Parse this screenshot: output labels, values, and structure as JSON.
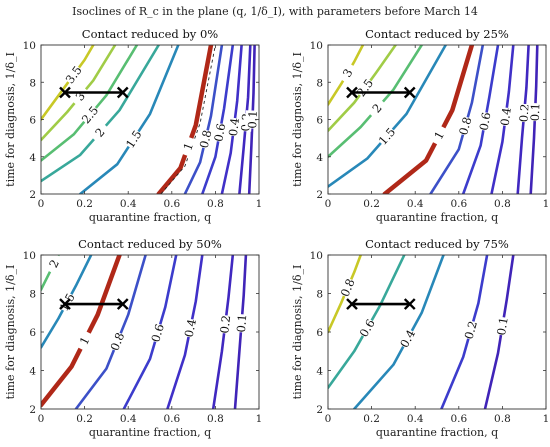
{
  "figure_title": "Isoclines of R_c in the plane (q, 1/δ_I), with parameters before March 14",
  "chart_data": [
    {
      "type": "line",
      "title": "Contact reduced by 0%",
      "xlabel": "quarantine fraction, q",
      "ylabel": "time for diagnosis, 1/δ_I",
      "xlim": [
        0,
        1
      ],
      "ylim": [
        2,
        10
      ],
      "xticks": [
        "0",
        "0.2",
        "0.4",
        "0.6",
        "0.8",
        "1"
      ],
      "yticks": [
        "2",
        "4",
        "6",
        "8",
        "10"
      ],
      "grid": false,
      "contours": [
        {
          "level": 3.5,
          "label": "3.5",
          "color": "#c8c826",
          "points": [
            [
              0.0,
              6.0
            ],
            [
              0.1,
              7.6
            ],
            [
              0.2,
              9.2
            ],
            [
              0.24,
              10.0
            ]
          ]
        },
        {
          "level": 3,
          "label": "3",
          "color": "#a0cc46",
          "points": [
            [
              0.0,
              4.9
            ],
            [
              0.12,
              6.4
            ],
            [
              0.24,
              8.1
            ],
            [
              0.34,
              10.0
            ]
          ]
        },
        {
          "level": 2.5,
          "label": "2.5",
          "color": "#58be72",
          "points": [
            [
              0.0,
              3.8
            ],
            [
              0.15,
              5.2
            ],
            [
              0.3,
              7.3
            ],
            [
              0.44,
              10.0
            ]
          ]
        },
        {
          "level": 2,
          "label": "2",
          "color": "#38a89a",
          "points": [
            [
              0.0,
              2.7
            ],
            [
              0.18,
              4.1
            ],
            [
              0.36,
              6.5
            ],
            [
              0.54,
              10.0
            ]
          ]
        },
        {
          "level": 1.5,
          "label": "1.5",
          "color": "#2888b8",
          "points": [
            [
              0.18,
              2.0
            ],
            [
              0.35,
              3.6
            ],
            [
              0.5,
              6.3
            ],
            [
              0.63,
              10.0
            ]
          ]
        },
        {
          "level": 1,
          "label": "1",
          "color": "#b02818",
          "thick": true,
          "points": [
            [
              0.54,
              2.0
            ],
            [
              0.64,
              3.4
            ],
            [
              0.71,
              5.7
            ],
            [
              0.78,
              10.0
            ]
          ]
        },
        {
          "level": 0.8,
          "label": "0.8",
          "color": "#3c50c8",
          "points": [
            [
              0.66,
              2.0
            ],
            [
              0.73,
              3.7
            ],
            [
              0.78,
              6.2
            ],
            [
              0.83,
              10.0
            ]
          ]
        },
        {
          "level": 0.6,
          "label": "0.6",
          "color": "#3c3ccc",
          "points": [
            [
              0.74,
              2.0
            ],
            [
              0.8,
              4.0
            ],
            [
              0.84,
              6.6
            ],
            [
              0.88,
              10.0
            ]
          ]
        },
        {
          "level": 0.4,
          "label": "0.4",
          "color": "#4030c8",
          "points": [
            [
              0.83,
              2.0
            ],
            [
              0.87,
              4.2
            ],
            [
              0.9,
              7.0
            ],
            [
              0.92,
              10.0
            ]
          ]
        },
        {
          "level": 0.2,
          "label": "0.2",
          "color": "#4028c0",
          "points": [
            [
              0.91,
              2.0
            ],
            [
              0.93,
              4.5
            ],
            [
              0.95,
              7.2
            ],
            [
              0.96,
              10.0
            ]
          ]
        },
        {
          "level": 0.1,
          "label": "0.1",
          "color": "#4024b8",
          "points": [
            [
              0.955,
              2.0
            ],
            [
              0.965,
              4.6
            ],
            [
              0.975,
              7.4
            ],
            [
              0.98,
              10.0
            ]
          ]
        }
      ],
      "dashed": [
        [
          0.55,
          2.0
        ],
        [
          0.66,
          3.5
        ],
        [
          0.73,
          5.8
        ],
        [
          0.8,
          10.0
        ]
      ],
      "marker_line": {
        "x": [
          0.11,
          0.375
        ],
        "y": 7.45
      }
    },
    {
      "type": "line",
      "title": "Contact reduced by 25%",
      "xlabel": "quarantine fraction, q",
      "ylabel": "time for diagnosis, 1/δ_I",
      "xlim": [
        0,
        1
      ],
      "ylim": [
        2,
        10
      ],
      "xticks": [
        "0",
        "0.2",
        "0.4",
        "0.6",
        "0.8",
        "1"
      ],
      "yticks": [
        "2",
        "4",
        "6",
        "8",
        "10"
      ],
      "grid": false,
      "contours": [
        {
          "level": 3,
          "label": "3",
          "color": "#c8c826",
          "points": [
            [
              0.0,
              6.8
            ],
            [
              0.06,
              7.9
            ],
            [
              0.12,
              9.1
            ],
            [
              0.16,
              10.0
            ]
          ]
        },
        {
          "level": 2.5,
          "label": "2.5",
          "color": "#a0cc46",
          "points": [
            [
              0.0,
              5.4
            ],
            [
              0.12,
              6.9
            ],
            [
              0.22,
              8.5
            ],
            [
              0.31,
              10.0
            ]
          ]
        },
        {
          "level": 2,
          "label": "2",
          "color": "#58be72",
          "points": [
            [
              0.0,
              4.0
            ],
            [
              0.15,
              5.6
            ],
            [
              0.3,
              7.6
            ],
            [
              0.43,
              10.0
            ]
          ]
        },
        {
          "level": 1.5,
          "label": "1.5",
          "color": "#2888b8",
          "points": [
            [
              0.0,
              2.4
            ],
            [
              0.18,
              3.9
            ],
            [
              0.36,
              6.3
            ],
            [
              0.54,
              10.0
            ]
          ]
        },
        {
          "level": 1,
          "label": "1",
          "color": "#b02818",
          "thick": true,
          "points": [
            [
              0.26,
              2.0
            ],
            [
              0.45,
              3.8
            ],
            [
              0.57,
              6.5
            ],
            [
              0.66,
              10.0
            ]
          ]
        },
        {
          "level": 0.8,
          "label": "0.8",
          "color": "#3c50c8",
          "points": [
            [
              0.47,
              2.0
            ],
            [
              0.6,
              4.4
            ],
            [
              0.66,
              6.9
            ],
            [
              0.71,
              10.0
            ]
          ]
        },
        {
          "level": 0.6,
          "label": "0.6",
          "color": "#3c3ccc",
          "points": [
            [
              0.62,
              2.0
            ],
            [
              0.7,
              4.6
            ],
            [
              0.74,
              7.2
            ],
            [
              0.78,
              10.0
            ]
          ]
        },
        {
          "level": 0.4,
          "label": "0.4",
          "color": "#4030c8",
          "points": [
            [
              0.75,
              2.0
            ],
            [
              0.8,
              4.8
            ],
            [
              0.83,
              7.5
            ],
            [
              0.85,
              10.0
            ]
          ]
        },
        {
          "level": 0.2,
          "label": "0.2",
          "color": "#4028c0",
          "points": [
            [
              0.87,
              2.0
            ],
            [
              0.89,
              5.0
            ],
            [
              0.91,
              7.7
            ],
            [
              0.92,
              10.0
            ]
          ]
        },
        {
          "level": 0.1,
          "label": "0.1",
          "color": "#4024b8",
          "points": [
            [
              0.93,
              2.0
            ],
            [
              0.945,
              5.0
            ],
            [
              0.955,
              7.8
            ],
            [
              0.96,
              10.0
            ]
          ]
        }
      ],
      "marker_line": {
        "x": [
          0.11,
          0.375
        ],
        "y": 7.45
      }
    },
    {
      "type": "line",
      "title": "Contact reduced by 50%",
      "xlabel": "quarantine fraction, q",
      "ylabel": "time for diagnosis, 1/δ_I",
      "xlim": [
        0,
        1
      ],
      "ylim": [
        2,
        10
      ],
      "xticks": [
        "0",
        "0.2",
        "0.4",
        "0.6",
        "0.8",
        "1"
      ],
      "yticks": [
        "2",
        "4",
        "6",
        "8",
        "10"
      ],
      "grid": false,
      "contours": [
        {
          "level": 2,
          "label": "2",
          "color": "#58be72",
          "points": [
            [
              0.0,
              8.2
            ],
            [
              0.04,
              9.1
            ],
            [
              0.08,
              10.0
            ]
          ]
        },
        {
          "level": 1.5,
          "label": "1.5",
          "color": "#2888b8",
          "points": [
            [
              0.0,
              5.2
            ],
            [
              0.08,
              6.7
            ],
            [
              0.16,
              8.4
            ],
            [
              0.23,
              10.0
            ]
          ]
        },
        {
          "level": 1,
          "label": "1",
          "color": "#b02818",
          "thick": true,
          "points": [
            [
              0.0,
              2.2
            ],
            [
              0.14,
              4.2
            ],
            [
              0.26,
              6.9
            ],
            [
              0.36,
              10.0
            ]
          ]
        },
        {
          "level": 0.8,
          "label": "0.8",
          "color": "#3c50c8",
          "points": [
            [
              0.16,
              2.0
            ],
            [
              0.3,
              4.1
            ],
            [
              0.4,
              6.9
            ],
            [
              0.48,
              10.0
            ]
          ]
        },
        {
          "level": 0.6,
          "label": "0.6",
          "color": "#3c3ccc",
          "points": [
            [
              0.38,
              2.0
            ],
            [
              0.5,
              4.6
            ],
            [
              0.57,
              7.3
            ],
            [
              0.62,
              10.0
            ]
          ]
        },
        {
          "level": 0.4,
          "label": "0.4",
          "color": "#4030c8",
          "points": [
            [
              0.58,
              2.0
            ],
            [
              0.66,
              4.8
            ],
            [
              0.71,
              7.6
            ],
            [
              0.74,
              10.0
            ]
          ]
        },
        {
          "level": 0.2,
          "label": "0.2",
          "color": "#4028c0",
          "points": [
            [
              0.79,
              2.0
            ],
            [
              0.83,
              5.0
            ],
            [
              0.86,
              7.8
            ],
            [
              0.88,
              10.0
            ]
          ]
        },
        {
          "level": 0.1,
          "label": "0.1",
          "color": "#4024b8",
          "points": [
            [
              0.89,
              2.0
            ],
            [
              0.91,
              5.0
            ],
            [
              0.93,
              7.9
            ],
            [
              0.94,
              10.0
            ]
          ]
        }
      ],
      "marker_line": {
        "x": [
          0.11,
          0.375
        ],
        "y": 7.45
      }
    },
    {
      "type": "line",
      "title": "Contact reduced by 75%",
      "xlabel": "quarantine fraction, q",
      "ylabel": "time for diagnosis, 1/δ_I",
      "xlim": [
        0,
        1
      ],
      "ylim": [
        2,
        10
      ],
      "xticks": [
        "0",
        "0.2",
        "0.4",
        "0.6",
        "0.8",
        "1"
      ],
      "yticks": [
        "2",
        "4",
        "6",
        "8",
        "10"
      ],
      "grid": false,
      "contours": [
        {
          "level": 0.8,
          "label": "0.8",
          "color": "#c8c826",
          "points": [
            [
              0.0,
              6.0
            ],
            [
              0.06,
              7.5
            ],
            [
              0.12,
              9.1
            ],
            [
              0.15,
              10.0
            ]
          ]
        },
        {
          "level": 0.6,
          "label": "0.6",
          "color": "#38a89a",
          "points": [
            [
              0.0,
              3.1
            ],
            [
              0.12,
              5.0
            ],
            [
              0.24,
              7.4
            ],
            [
              0.35,
              10.0
            ]
          ]
        },
        {
          "level": 0.4,
          "label": "0.4",
          "color": "#2888b8",
          "points": [
            [
              0.12,
              2.0
            ],
            [
              0.3,
              4.3
            ],
            [
              0.43,
              7.0
            ],
            [
              0.53,
              10.0
            ]
          ]
        },
        {
          "level": 0.2,
          "label": "0.2",
          "color": "#3c3ccc",
          "points": [
            [
              0.52,
              2.0
            ],
            [
              0.62,
              4.7
            ],
            [
              0.69,
              7.5
            ],
            [
              0.73,
              10.0
            ]
          ]
        },
        {
          "level": 0.1,
          "label": "0.1",
          "color": "#4024b8",
          "points": [
            [
              0.72,
              2.0
            ],
            [
              0.78,
              4.9
            ],
            [
              0.82,
              7.7
            ],
            [
              0.85,
              10.0
            ]
          ]
        }
      ],
      "marker_line": {
        "x": [
          0.11,
          0.375
        ],
        "y": 7.45
      }
    }
  ]
}
